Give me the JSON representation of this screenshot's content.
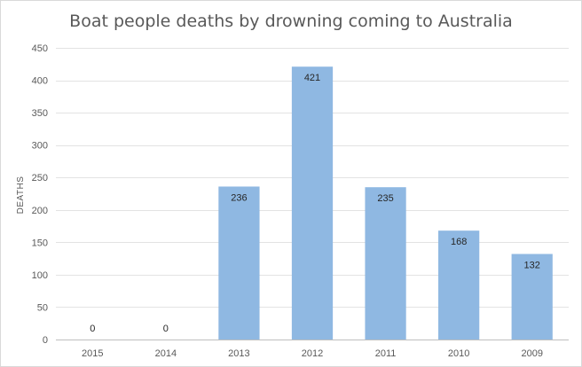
{
  "chart_data": {
    "type": "bar",
    "title": "Boat people deaths by drowning coming to Australia",
    "xlabel": "",
    "ylabel": "DEATHS",
    "categories": [
      "2015",
      "2014",
      "2013",
      "2012",
      "2011",
      "2010",
      "2009"
    ],
    "values": [
      0,
      0,
      236,
      421,
      235,
      168,
      132
    ],
    "data_labels": [
      "0",
      "0",
      "236",
      "421",
      "235",
      "168",
      "132"
    ],
    "ylim": [
      0,
      450
    ],
    "yticks": [
      0,
      50,
      100,
      150,
      200,
      250,
      300,
      350,
      400,
      450
    ],
    "grid": true,
    "legend": "none",
    "bar_color": "#8fb8e2"
  }
}
